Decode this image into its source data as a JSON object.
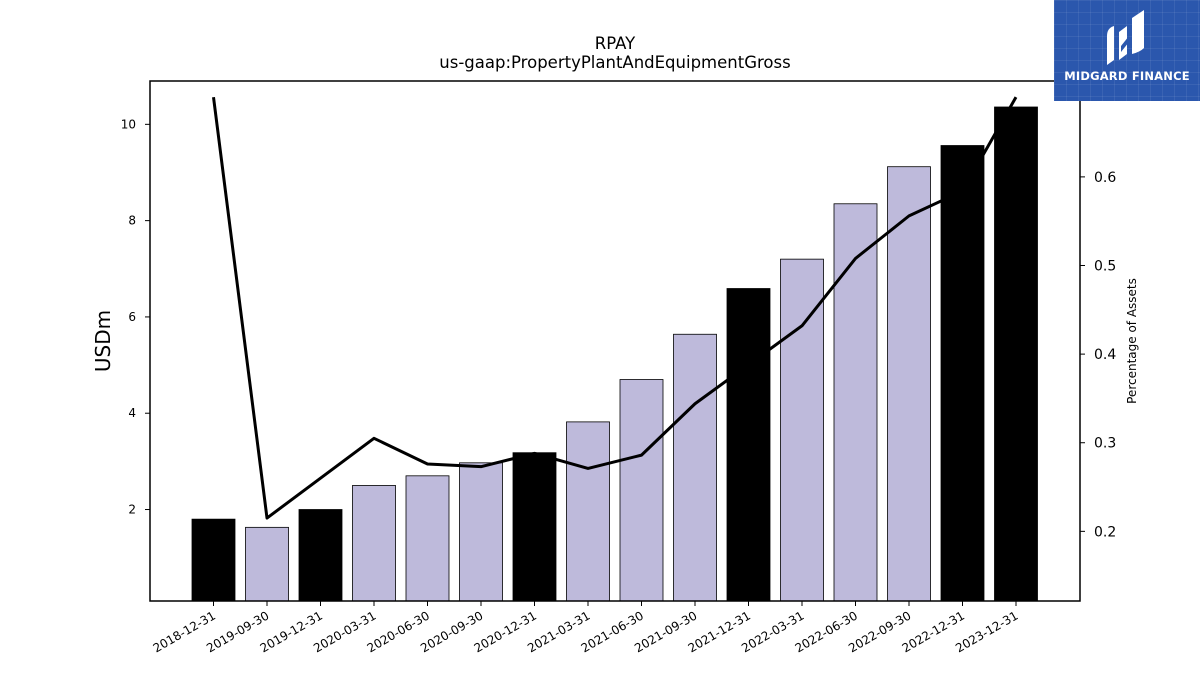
{
  "brand": {
    "name": "MIDGARD FINANCE"
  },
  "colors": {
    "bar_default": "#bebadb",
    "bar_highlight": "#000000",
    "line": "#000000"
  },
  "chart_data": {
    "type": "bar",
    "title": "RPAY",
    "subtitle": "us-gaap:PropertyPlantAndEquipmentGross",
    "ylabel": "USDm",
    "y2label": "Percentage of Assets",
    "categories": [
      "2018-12-31",
      "2019-09-30",
      "2019-12-31",
      "2020-03-31",
      "2020-06-30",
      "2020-09-30",
      "2020-12-31",
      "2021-03-31",
      "2021-06-30",
      "2021-09-30",
      "2021-12-31",
      "2022-03-31",
      "2022-06-30",
      "2022-09-30",
      "2022-12-31",
      "2023-12-31"
    ],
    "series": [
      {
        "type": "bar",
        "axis": "left",
        "values": [
          1.8,
          1.63,
          2.0,
          2.5,
          2.7,
          2.97,
          3.18,
          3.82,
          4.7,
          5.64,
          6.59,
          7.2,
          8.35,
          9.12,
          9.56,
          10.36
        ],
        "highlight": [
          true,
          false,
          true,
          false,
          false,
          false,
          true,
          false,
          false,
          false,
          true,
          false,
          false,
          false,
          true,
          true
        ]
      },
      {
        "type": "line",
        "axis": "right",
        "values": [
          0.69,
          0.215,
          0.26,
          0.305,
          0.276,
          0.273,
          0.288,
          0.271,
          0.286,
          0.344,
          0.388,
          0.432,
          0.508,
          0.556,
          0.584,
          0.69
        ]
      }
    ],
    "ylim": [
      0.1,
      10.9
    ],
    "yticks": [
      2,
      4,
      6,
      8,
      10
    ],
    "y2lim": [
      0.1214,
      0.7082
    ],
    "y2ticks": [
      0.2,
      0.3,
      0.4,
      0.5,
      0.6
    ],
    "grid": false,
    "legend": "none"
  }
}
